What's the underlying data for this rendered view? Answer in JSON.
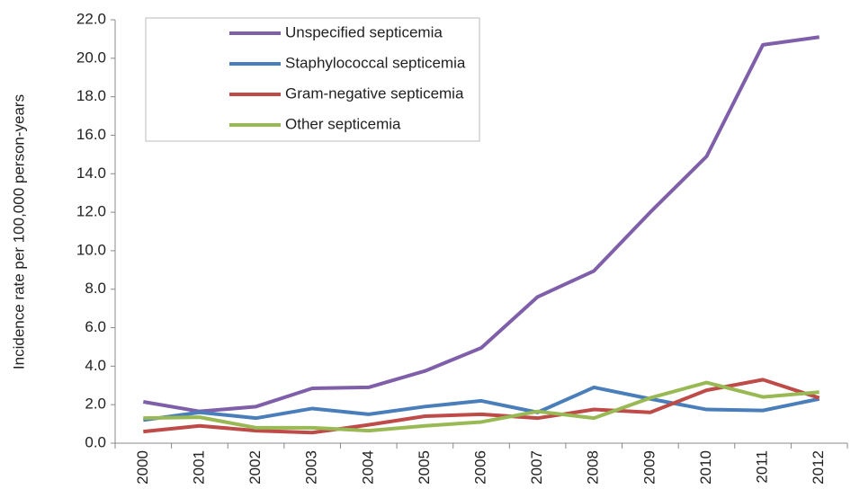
{
  "chart_data": {
    "type": "line",
    "ylabel": "Incidence rate per 100,000 person-years",
    "categories": [
      "2000",
      "2001",
      "2002",
      "2003",
      "2004",
      "2005",
      "2006",
      "2007",
      "2008",
      "2009",
      "2010",
      "2011",
      "2012"
    ],
    "series": [
      {
        "name": "Unspecified septicemia",
        "color": "#7f5fa9",
        "values": [
          2.15,
          1.65,
          1.9,
          2.85,
          2.9,
          3.75,
          4.95,
          7.6,
          8.95,
          12.0,
          14.9,
          20.7,
          21.1
        ]
      },
      {
        "name": "Staphylococcal septicemia",
        "color": "#4a7ebb",
        "values": [
          1.2,
          1.6,
          1.3,
          1.8,
          1.5,
          1.9,
          2.2,
          1.6,
          2.9,
          2.3,
          1.75,
          1.7,
          2.3
        ]
      },
      {
        "name": "Gram-negative septicemia",
        "color": "#be4b48",
        "values": [
          0.6,
          0.9,
          0.65,
          0.55,
          0.95,
          1.4,
          1.5,
          1.3,
          1.75,
          1.6,
          2.75,
          3.3,
          2.35
        ]
      },
      {
        "name": "Other septicemia",
        "color": "#98b954",
        "values": [
          1.3,
          1.35,
          0.8,
          0.8,
          0.65,
          0.9,
          1.1,
          1.65,
          1.3,
          2.35,
          3.15,
          2.4,
          2.65
        ]
      }
    ],
    "ylim": [
      0,
      22
    ],
    "yticks": [
      {
        "value": 0,
        "label": "0.0"
      },
      {
        "value": 2,
        "label": "2.0"
      },
      {
        "value": 4,
        "label": "4.0"
      },
      {
        "value": 6,
        "label": "6.0"
      },
      {
        "value": 8,
        "label": "8.0"
      },
      {
        "value": 10,
        "label": "10.0"
      },
      {
        "value": 12,
        "label": "12.0"
      },
      {
        "value": 14,
        "label": "14.0"
      },
      {
        "value": 16,
        "label": "16.0"
      },
      {
        "value": 18,
        "label": "18.0"
      },
      {
        "value": 20,
        "label": "20.0"
      },
      {
        "value": 22,
        "label": "22.0"
      }
    ],
    "grid": false,
    "legend": "top-left"
  }
}
